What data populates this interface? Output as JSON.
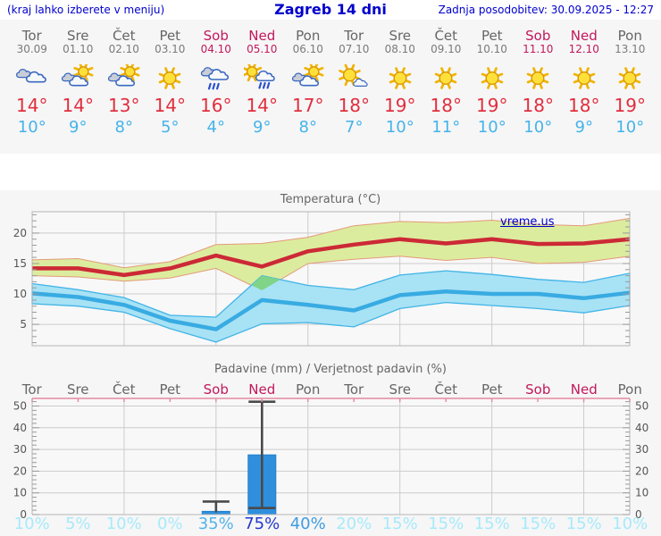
{
  "header": {
    "left": "(kraj lahko izberete v meniju)",
    "title": "Zagreb 14 dni",
    "right": "Zadnja posodobitev: 30.09.2025 - 12:27"
  },
  "watermark": "vreme.us",
  "colors": {
    "link_blue": "#0000cc",
    "text_gray": "#666666",
    "weekend": "#c2185b",
    "tmax_text": "#e12e3e",
    "tmin_text": "#45b3ea",
    "line_red": "#cc2936",
    "band_yellow": "#dcec9f",
    "band_yellow_edge": "#e49a78",
    "line_blue": "#38abe2",
    "band_blue": "#a8e2f5",
    "band_blue_edge": "#41b4e6",
    "overlap_green": "#7fd488",
    "grid": "#cccccc",
    "frame": "#b5b5b5",
    "tick_label": "#555555",
    "precip_top_border": "#e5899f",
    "bar_blue": "#2f8fdd",
    "whisker": "#4a4a4a",
    "pop_pale": "#a7eafb",
    "plot_bg": "#f8f8f8"
  },
  "days": [
    {
      "name": "Tor",
      "date": "30.09",
      "weekend": false,
      "icon": "cloudy",
      "tmax_label": "14°",
      "tmin_label": "10°",
      "pop_label": "10%",
      "pop_color": "#a7eafb"
    },
    {
      "name": "Sre",
      "date": "01.10",
      "weekend": false,
      "icon": "partly",
      "tmax_label": "14°",
      "tmin_label": "9°",
      "pop_label": "5%",
      "pop_color": "#a7eafb"
    },
    {
      "name": "Čet",
      "date": "02.10",
      "weekend": false,
      "icon": "partly",
      "tmax_label": "13°",
      "tmin_label": "8°",
      "pop_label": "10%",
      "pop_color": "#a7eafb"
    },
    {
      "name": "Pet",
      "date": "03.10",
      "weekend": false,
      "icon": "sunny",
      "tmax_label": "14°",
      "tmin_label": "5°",
      "pop_label": "0%",
      "pop_color": "#a7eafb"
    },
    {
      "name": "Sob",
      "date": "04.10",
      "weekend": true,
      "icon": "rain",
      "tmax_label": "16°",
      "tmin_label": "4°",
      "pop_label": "35%",
      "pop_color": "#54b3eb"
    },
    {
      "name": "Ned",
      "date": "05.10",
      "weekend": true,
      "icon": "sun-rain",
      "tmax_label": "14°",
      "tmin_label": "9°",
      "pop_label": "75%",
      "pop_color": "#2438cf"
    },
    {
      "name": "Pon",
      "date": "06.10",
      "weekend": false,
      "icon": "partly",
      "tmax_label": "17°",
      "tmin_label": "8°",
      "pop_label": "40%",
      "pop_color": "#3f9ce2"
    },
    {
      "name": "Tor",
      "date": "07.10",
      "weekend": false,
      "icon": "mostly-sunny",
      "tmax_label": "18°",
      "tmin_label": "7°",
      "pop_label": "20%",
      "pop_color": "#a7eafb"
    },
    {
      "name": "Sre",
      "date": "08.10",
      "weekend": false,
      "icon": "sunny",
      "tmax_label": "19°",
      "tmin_label": "10°",
      "pop_label": "15%",
      "pop_color": "#a7eafb"
    },
    {
      "name": "Čet",
      "date": "09.10",
      "weekend": false,
      "icon": "sunny",
      "tmax_label": "18°",
      "tmin_label": "11°",
      "pop_label": "15%",
      "pop_color": "#a7eafb"
    },
    {
      "name": "Pet",
      "date": "10.10",
      "weekend": false,
      "icon": "sunny",
      "tmax_label": "19°",
      "tmin_label": "10°",
      "pop_label": "15%",
      "pop_color": "#a7eafb"
    },
    {
      "name": "Sob",
      "date": "11.10",
      "weekend": true,
      "icon": "sunny",
      "tmax_label": "18°",
      "tmin_label": "10°",
      "pop_label": "15%",
      "pop_color": "#a7eafb"
    },
    {
      "name": "Ned",
      "date": "12.10",
      "weekend": true,
      "icon": "sunny",
      "tmax_label": "18°",
      "tmin_label": "9°",
      "pop_label": "15%",
      "pop_color": "#a7eafb"
    },
    {
      "name": "Pon",
      "date": "13.10",
      "weekend": false,
      "icon": "sunny",
      "tmax_label": "19°",
      "tmin_label": "10°",
      "pop_label": "10%",
      "pop_color": "#a7eafb"
    }
  ],
  "chart_data": [
    {
      "type": "line",
      "title": "Temperatura (°C)",
      "categories": [
        "Tor",
        "Sre",
        "Čet",
        "Pet",
        "Sob",
        "Ned",
        "Pon",
        "Tor",
        "Sre",
        "Čet",
        "Pet",
        "Sob",
        "Ned",
        "Pon"
      ],
      "ylim": [
        1.5,
        23.5
      ],
      "yticks": [
        5,
        10,
        15,
        20
      ],
      "x_gridline_day_indices": [
        2,
        4,
        6,
        8,
        10,
        12
      ],
      "legend_position": "none",
      "series": [
        {
          "name": "max temperature",
          "values": [
            14.2,
            14.2,
            13.1,
            14.2,
            16.3,
            14.5,
            17.0,
            18.1,
            19.0,
            18.3,
            19.0,
            18.2,
            18.3,
            19.0
          ]
        },
        {
          "name": "max band upper",
          "values": [
            15.6,
            15.8,
            14.3,
            15.3,
            18.1,
            18.3,
            19.3,
            21.2,
            21.9,
            21.7,
            22.1,
            21.4,
            21.2,
            22.4
          ]
        },
        {
          "name": "max band lower",
          "values": [
            13.0,
            12.8,
            12.1,
            12.6,
            14.2,
            10.6,
            15.0,
            15.7,
            16.2,
            15.5,
            16.0,
            15.0,
            15.2,
            16.2
          ]
        },
        {
          "name": "min temperature",
          "values": [
            10.1,
            9.5,
            8.2,
            5.6,
            4.2,
            9.0,
            8.2,
            7.3,
            9.8,
            10.4,
            10.0,
            10.0,
            9.3,
            10.2
          ]
        },
        {
          "name": "min band upper",
          "values": [
            11.7,
            10.7,
            9.4,
            6.5,
            6.2,
            13.0,
            11.4,
            10.7,
            13.1,
            13.8,
            13.2,
            12.4,
            11.9,
            13.4
          ]
        },
        {
          "name": "min band lower",
          "values": [
            8.4,
            8.0,
            7.0,
            4.3,
            2.1,
            5.1,
            5.3,
            4.6,
            7.6,
            8.6,
            8.1,
            7.6,
            6.9,
            8.1
          ]
        }
      ]
    },
    {
      "type": "bar",
      "title": "Padavine (mm) / Verjetnost padavin (%)",
      "categories": [
        "Tor",
        "Sre",
        "Čet",
        "Pet",
        "Sob",
        "Ned",
        "Pon",
        "Tor",
        "Sre",
        "Čet",
        "Pet",
        "Sob",
        "Ned",
        "Pon"
      ],
      "ylim": [
        0,
        53.5
      ],
      "yticks": [
        0,
        10,
        20,
        30,
        40,
        50
      ],
      "x_gridline_day_indices": [
        2,
        4,
        6,
        8,
        10,
        12
      ],
      "precip_mm": [
        0,
        0,
        0,
        0,
        1.5,
        27.5,
        0,
        0,
        0,
        0,
        0,
        0,
        0,
        0
      ],
      "whiskers": [
        {
          "day_index": 4,
          "low": 1,
          "high": 6,
          "cap_low": false,
          "cap_high": true
        },
        {
          "day_index": 5,
          "low": 3,
          "high": 52,
          "cap_low": true,
          "cap_high": true
        }
      ],
      "probability_pct": [
        10,
        5,
        10,
        0,
        35,
        75,
        40,
        20,
        15,
        15,
        15,
        15,
        15,
        10
      ]
    }
  ]
}
